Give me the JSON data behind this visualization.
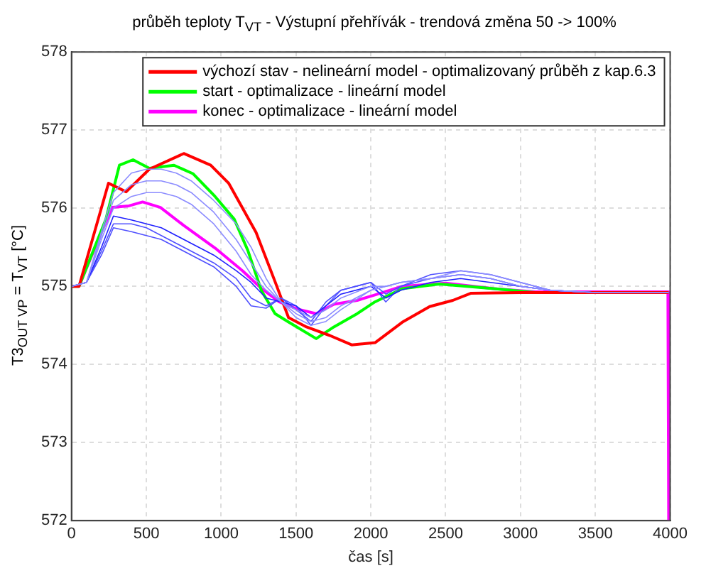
{
  "chart_data": {
    "type": "line",
    "title": "průběh teploty T$_{VT}$ - Výstupní přehřívák - trendová změna 50 -> 100%",
    "xlabel": "čas [s]",
    "ylabel": "T3$_{OUT VP}$ = T$_{VT}$ [°C]",
    "xlim": [
      0,
      4000
    ],
    "xticks": [
      0,
      500,
      1000,
      1500,
      2000,
      2500,
      3000,
      3500,
      4000
    ],
    "ylim": [
      572,
      578
    ],
    "yticks": [
      572,
      573,
      574,
      575,
      576,
      577,
      578
    ],
    "grid": true,
    "legend": "top right",
    "marker": "none",
    "line_style": "solid",
    "series": [
      {
        "color": "#8c8cff",
        "x": [
          0,
          100,
          200,
          280,
          400,
          500,
          600,
          700,
          800,
          950,
          1100,
          1200,
          1300,
          1400,
          1500,
          1600,
          1700,
          1800,
          2000,
          2100,
          2200,
          2400,
          2600,
          2800,
          3000,
          3200,
          3500,
          3990
        ],
        "values": [
          575,
          575.05,
          575.7,
          576.2,
          576.45,
          576.5,
          576.5,
          576.45,
          576.35,
          576.1,
          575.8,
          575.5,
          575.1,
          574.8,
          574.6,
          574.5,
          574.55,
          574.7,
          574.95,
          575.0,
          575.05,
          575.1,
          575.15,
          575.1,
          575.0,
          574.95,
          574.92,
          574.92
        ]
      },
      {
        "color": "#8c8cff",
        "x": [
          0,
          100,
          200,
          280,
          400,
          500,
          600,
          700,
          800,
          950,
          1100,
          1200,
          1300,
          1400,
          1500,
          1600,
          1700,
          1800,
          2000,
          2100,
          2200,
          2400,
          2600,
          2800,
          3000,
          3200,
          3500,
          3990
        ],
        "values": [
          575,
          575.05,
          575.65,
          576.1,
          576.3,
          576.35,
          576.35,
          576.3,
          576.2,
          575.95,
          575.6,
          575.3,
          575.0,
          574.8,
          574.65,
          574.55,
          574.6,
          574.75,
          574.95,
          575.0,
          575.05,
          575.1,
          575.2,
          575.15,
          575.05,
          574.95,
          574.92,
          574.92
        ]
      },
      {
        "color": "#8c8cff",
        "x": [
          0,
          100,
          200,
          280,
          400,
          500,
          600,
          700,
          800,
          950,
          1100,
          1200,
          1300,
          1400,
          1500,
          1600,
          1700,
          1800,
          2000,
          2100,
          2200,
          2400,
          2600,
          2800,
          3000,
          3200,
          3500,
          3990
        ],
        "values": [
          575,
          575.05,
          575.6,
          576.0,
          576.15,
          576.2,
          576.2,
          576.15,
          576.05,
          575.8,
          575.45,
          575.15,
          574.95,
          574.8,
          574.7,
          574.6,
          574.7,
          574.85,
          575.0,
          575.0,
          575.05,
          575.1,
          575.15,
          575.1,
          575.0,
          574.95,
          574.92,
          574.92
        ]
      },
      {
        "color": "#2020ff",
        "x": [
          0,
          100,
          200,
          280,
          400,
          500,
          600,
          700,
          800,
          950,
          1100,
          1200,
          1300,
          1400,
          1500,
          1600,
          1700,
          1800,
          2000,
          2100,
          2200,
          2400,
          2600,
          2800,
          3000,
          3200,
          3500,
          3990
        ],
        "values": [
          575,
          575.05,
          575.5,
          575.9,
          575.85,
          575.8,
          575.75,
          575.65,
          575.55,
          575.4,
          575.2,
          575.05,
          574.85,
          574.8,
          574.75,
          574.6,
          574.75,
          574.9,
          575.0,
          574.85,
          574.95,
          575.05,
          575.1,
          575.05,
          575.0,
          574.95,
          574.92,
          574.92
        ]
      },
      {
        "color": "#5050ff",
        "x": [
          0,
          100,
          200,
          280,
          400,
          500,
          600,
          700,
          800,
          950,
          1100,
          1200,
          1300,
          1400,
          1500,
          1600,
          1700,
          1800,
          2000,
          2100,
          2200,
          2400,
          2600,
          2800,
          3000,
          3200,
          3500,
          3990
        ],
        "values": [
          575,
          575.05,
          575.45,
          575.8,
          575.8,
          575.75,
          575.65,
          575.55,
          575.45,
          575.3,
          575.1,
          574.85,
          574.75,
          574.85,
          574.7,
          574.55,
          574.8,
          574.95,
          575.05,
          574.9,
          575.0,
          575.1,
          575.15,
          575.1,
          575.0,
          574.95,
          574.92,
          574.92
        ]
      },
      {
        "color": "#5050ff",
        "x": [
          0,
          100,
          200,
          280,
          400,
          500,
          600,
          700,
          800,
          950,
          1100,
          1200,
          1300,
          1400,
          1500,
          1600,
          1700,
          1800,
          2000,
          2100,
          2200,
          2400,
          2600,
          2800,
          3000,
          3200,
          3500,
          3990
        ],
        "values": [
          575,
          575.05,
          575.4,
          575.75,
          575.7,
          575.65,
          575.6,
          575.5,
          575.4,
          575.25,
          575.0,
          574.75,
          574.72,
          574.85,
          574.75,
          574.5,
          574.75,
          574.95,
          575.05,
          574.8,
          575.0,
          575.15,
          575.2,
          575.15,
          575.05,
          574.95,
          574.92,
          574.92
        ]
      },
      {
        "name": "výchozí stav - nelineární model - optimalizovaný průběh z kap.6.3",
        "color": "#ff0000",
        "x": [
          0,
          50,
          247,
          365,
          520,
          750,
          930,
          1050,
          1233,
          1360,
          1450,
          1570,
          1726,
          1872,
          2030,
          2210,
          2393,
          2548,
          2667,
          3000,
          3990
        ],
        "values": [
          575,
          575,
          576.32,
          576.21,
          576.5,
          576.7,
          576.55,
          576.32,
          575.69,
          575.06,
          574.6,
          574.48,
          574.37,
          574.25,
          574.28,
          574.54,
          574.74,
          574.82,
          574.91,
          574.92,
          574.92
        ]
      },
      {
        "name": "start - optimalizace - lineární model",
        "color": "#00ff00",
        "x": [
          0,
          50,
          230,
          320,
          411,
          520,
          685,
          813,
          959,
          1087,
          1178,
          1270,
          1360,
          1452,
          1635,
          1753,
          1909,
          2027,
          2210,
          2457,
          2822,
          3100
        ],
        "values": [
          575,
          575,
          575.86,
          576.55,
          576.62,
          576.51,
          576.55,
          576.44,
          576.15,
          575.86,
          575.46,
          574.94,
          574.65,
          574.54,
          574.33,
          574.48,
          574.65,
          574.8,
          574.97,
          575.03,
          574.97,
          574.92
        ]
      },
      {
        "name": "konec - optimalizace - lineární model",
        "color": "#ff00ff",
        "x": [
          0,
          50,
          200,
          274,
          384,
          475,
          594,
          749,
          959,
          1142,
          1270,
          1388,
          1507,
          1635,
          1753,
          1909,
          2027,
          2210,
          2500,
          2822,
          3100,
          3985,
          3990
        ],
        "values": [
          575,
          575,
          575.69,
          576.01,
          576.03,
          576.08,
          576.01,
          575.78,
          575.49,
          575.2,
          574.97,
          574.8,
          574.71,
          574.65,
          574.77,
          574.82,
          574.89,
          575.0,
          575.04,
          574.97,
          574.93,
          574.93,
          572
        ]
      }
    ]
  }
}
